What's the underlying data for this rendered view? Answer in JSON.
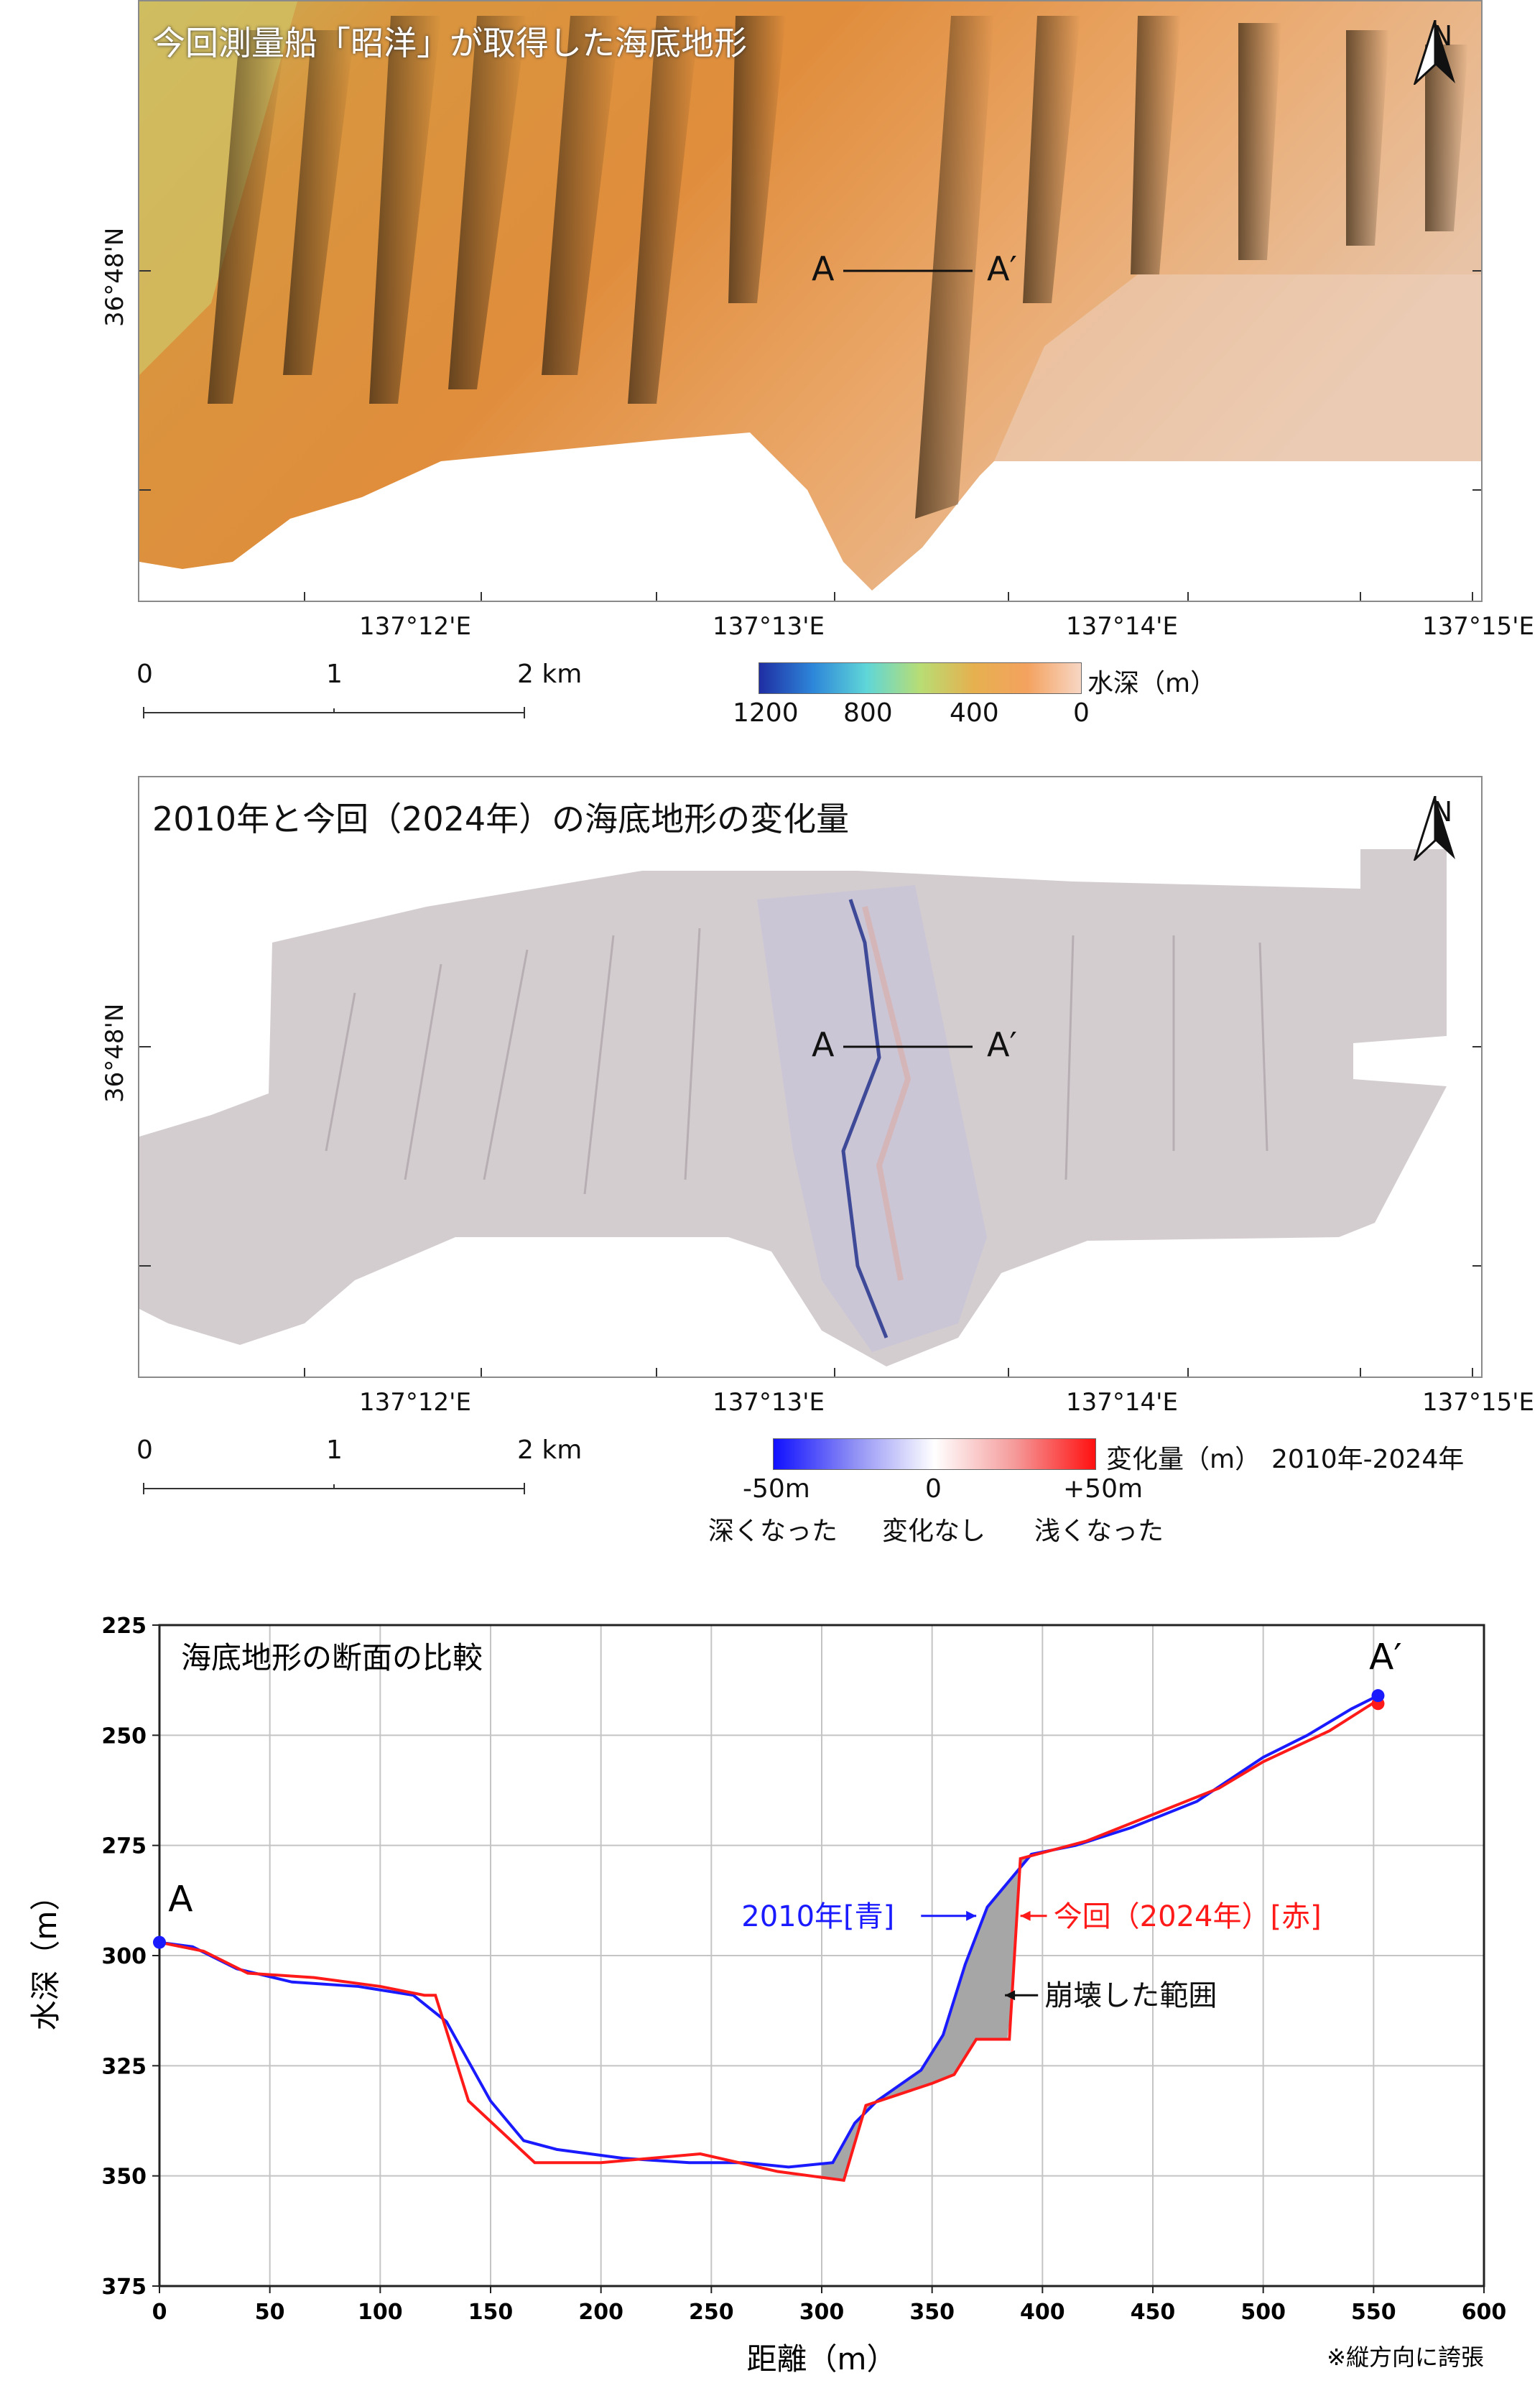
{
  "map1": {
    "title": "今回測量船「昭洋」が取得した海底地形",
    "north": "N",
    "lat_label": "36°48'N",
    "lon_labels": [
      "137°12'E",
      "137°13'E",
      "137°14'E",
      "137°15'E"
    ],
    "point_a": "A",
    "point_a_prime": "A′",
    "scale_labels": [
      "0",
      "1",
      "2 km"
    ],
    "legend_title": "水深（m）",
    "legend_ticks": [
      "1200",
      "800",
      "400",
      "0"
    ]
  },
  "map2": {
    "title": "2010年と今回（2024年）の海底地形の変化量",
    "north": "N",
    "lat_label": "36°48'N",
    "lon_labels": [
      "137°12'E",
      "137°13'E",
      "137°14'E",
      "137°15'E"
    ],
    "point_a": "A",
    "point_a_prime": "A′",
    "scale_labels": [
      "0",
      "1",
      "2 km"
    ],
    "legend_title": "変化量（m）",
    "legend_period": "2010年-2024年",
    "legend_ticks": [
      "-50m",
      "0",
      "+50m"
    ],
    "legend_captions": [
      "深くなった",
      "変化なし",
      "浅くなった"
    ]
  },
  "chart_data": {
    "type": "line",
    "title": "海底地形の断面の比較",
    "xlabel": "距離（m）",
    "ylabel": "水深（m）",
    "xlim": [
      0,
      600
    ],
    "ylim": [
      375,
      225
    ],
    "xticks": [
      "0",
      "50",
      "100",
      "150",
      "200",
      "250",
      "300",
      "350",
      "400",
      "450",
      "500",
      "550",
      "600"
    ],
    "yticks": [
      "225",
      "250",
      "275",
      "300",
      "325",
      "350",
      "375"
    ],
    "grid": true,
    "endpoint_labels": [
      "A",
      "A′"
    ],
    "series": [
      {
        "name": "2010年[青]",
        "color": "#1a1aff",
        "x": [
          0,
          15,
          35,
          60,
          90,
          115,
          130,
          150,
          165,
          180,
          210,
          240,
          265,
          285,
          305,
          315,
          325,
          345,
          355,
          365,
          375,
          395,
          415,
          440,
          470,
          500,
          520,
          540,
          552
        ],
        "y": [
          297,
          298,
          303,
          306,
          307,
          309,
          315,
          333,
          342,
          344,
          346,
          347,
          347,
          348,
          347,
          338,
          333,
          326,
          318,
          302,
          289,
          277,
          275,
          271,
          265,
          255,
          250,
          244,
          241
        ]
      },
      {
        "name": "今回（2024年）[赤]",
        "color": "#ff1a1a",
        "x": [
          0,
          20,
          40,
          70,
          100,
          120,
          125,
          140,
          170,
          200,
          245,
          280,
          310,
          320,
          350,
          360,
          370,
          385,
          390,
          420,
          450,
          480,
          500,
          530,
          552
        ],
        "y": [
          297,
          299,
          304,
          305,
          307,
          309,
          309,
          333,
          347,
          347,
          345,
          349,
          351,
          334,
          329,
          327,
          319,
          319,
          278,
          274,
          268,
          262,
          256,
          249,
          242
        ]
      }
    ],
    "annotations": [
      "2010年[青]",
      "今回（2024年）[赤]",
      "崩壊した範囲",
      "※縦方向に誇張"
    ]
  }
}
